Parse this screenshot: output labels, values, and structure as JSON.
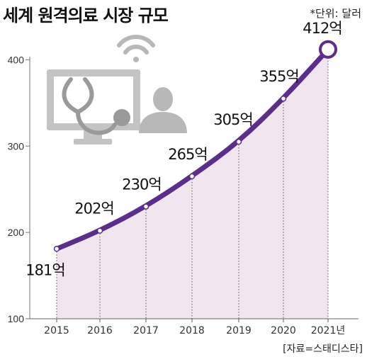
{
  "header": {
    "title": "세계 원격의료 시장 규모",
    "unit_note": "*단위: 달러"
  },
  "footer": {
    "source": "[자료=스태디스타]"
  },
  "colors": {
    "line": "#5b2d8c",
    "fill": "#f1e6ee",
    "icon": "#b8b8b8"
  },
  "icons": [
    "monitor-stethoscope-icon",
    "wifi-icon",
    "doctor-person-icon"
  ],
  "chart_data": {
    "type": "area",
    "x_labels": [
      "2015",
      "2016",
      "2017",
      "2018",
      "2019",
      "2020",
      "2021년"
    ],
    "values": [
      181,
      202,
      230,
      265,
      305,
      355,
      412
    ],
    "data_labels": [
      "181억",
      "202억",
      "230억",
      "265억",
      "305억",
      "355억",
      "412억"
    ],
    "y_ticks": [
      100,
      200,
      300,
      400
    ],
    "ylim": [
      100,
      420
    ],
    "highlight_last_point": true
  }
}
